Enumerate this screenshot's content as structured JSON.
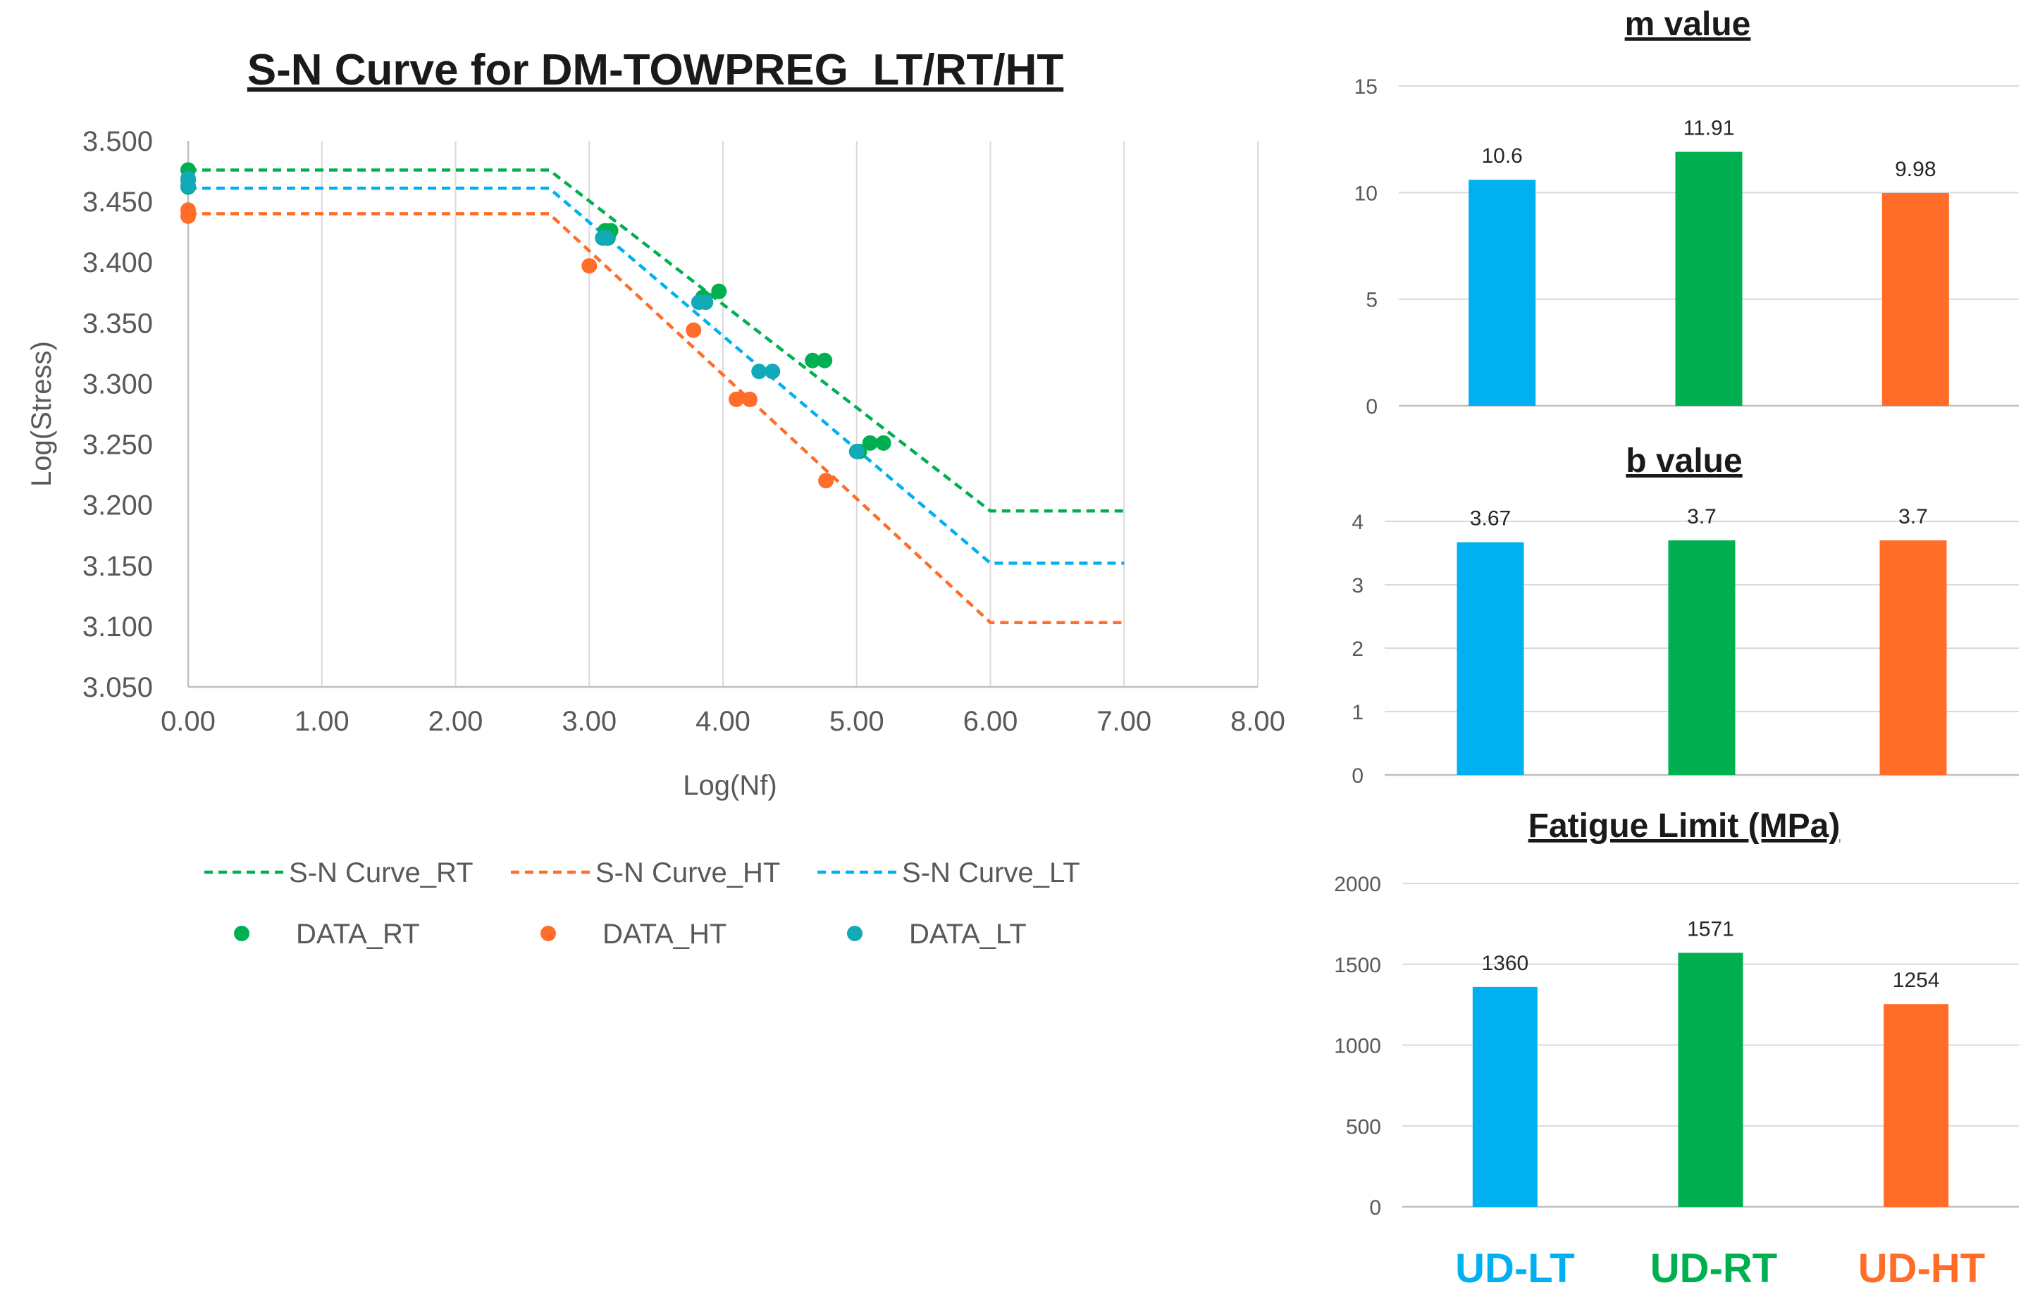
{
  "colors": {
    "rt": "#00b050",
    "ht": "#ff6d29",
    "lt": "#00b0f0",
    "lt_marker": "#12a9b8",
    "axis": "#bfbfbf",
    "grid": "#d9d9d9",
    "text": "#595959",
    "title": "#1a1a1a"
  },
  "chart_data": [
    {
      "type": "scatter",
      "title": "S-N Curve for DM-TOWPREG_LT/RT/HT",
      "xlabel": "Log(Nf)",
      "ylabel": "Log(Stress)",
      "xlim": [
        0,
        8
      ],
      "ylim": [
        3.05,
        3.5
      ],
      "xticks": [
        "0.00",
        "1.00",
        "2.00",
        "3.00",
        "4.00",
        "5.00",
        "6.00",
        "7.00",
        "8.00"
      ],
      "yticks": [
        "3.050",
        "3.100",
        "3.150",
        "3.200",
        "3.250",
        "3.300",
        "3.350",
        "3.400",
        "3.450",
        "3.500"
      ],
      "grid": "vertical",
      "legend_position": "bottom",
      "series": [
        {
          "name": "S-N Curve_RT",
          "kind": "line",
          "dash": true,
          "color_key": "rt",
          "x": [
            0,
            2.7,
            6.0,
            7.0
          ],
          "y": [
            3.476,
            3.476,
            3.195,
            3.195
          ]
        },
        {
          "name": "S-N Curve_HT",
          "kind": "line",
          "dash": true,
          "color_key": "ht",
          "x": [
            0,
            2.7,
            6.0,
            7.0
          ],
          "y": [
            3.44,
            3.44,
            3.103,
            3.103
          ]
        },
        {
          "name": "S-N Curve_LT",
          "kind": "line",
          "dash": true,
          "color_key": "lt",
          "x": [
            0,
            2.7,
            6.0,
            7.0
          ],
          "y": [
            3.461,
            3.461,
            3.152,
            3.152
          ]
        },
        {
          "name": "DATA_RT",
          "kind": "points",
          "color_key": "rt",
          "points": [
            [
              0.0,
              3.476
            ],
            [
              0.0,
              3.468
            ],
            [
              0.0,
              3.462
            ],
            [
              3.12,
              3.426
            ],
            [
              3.16,
              3.426
            ],
            [
              3.14,
              3.42
            ],
            [
              3.85,
              3.371
            ],
            [
              3.97,
              3.376
            ],
            [
              4.67,
              3.319
            ],
            [
              4.76,
              3.319
            ],
            [
              5.02,
              3.244
            ],
            [
              5.1,
              3.251
            ],
            [
              5.2,
              3.251
            ]
          ]
        },
        {
          "name": "DATA_HT",
          "kind": "points",
          "color_key": "ht",
          "points": [
            [
              0.0,
              3.443
            ],
            [
              0.0,
              3.438
            ],
            [
              3.0,
              3.397
            ],
            [
              3.78,
              3.344
            ],
            [
              4.1,
              3.287
            ],
            [
              4.2,
              3.287
            ],
            [
              4.77,
              3.22
            ]
          ]
        },
        {
          "name": "DATA_LT",
          "kind": "points",
          "color_key": "lt_marker",
          "points": [
            [
              0.0,
              3.469
            ],
            [
              0.0,
              3.463
            ],
            [
              3.1,
              3.42
            ],
            [
              3.13,
              3.42
            ],
            [
              3.82,
              3.367
            ],
            [
              3.87,
              3.367
            ],
            [
              4.27,
              3.31
            ],
            [
              4.37,
              3.31
            ],
            [
              5.0,
              3.244
            ]
          ]
        }
      ]
    },
    {
      "type": "bar",
      "title": "m value",
      "categories": [
        "UD-LT",
        "UD-RT",
        "UD-HT"
      ],
      "values": [
        10.6,
        11.91,
        9.98
      ],
      "labels": [
        "10.6",
        "11.91",
        "9.98"
      ],
      "ylim": [
        0,
        15
      ],
      "yticks": [
        "0",
        "5",
        "10",
        "15"
      ],
      "color_keys": [
        "lt",
        "rt",
        "ht"
      ]
    },
    {
      "type": "bar",
      "title": "b value",
      "categories": [
        "UD-LT",
        "UD-RT",
        "UD-HT"
      ],
      "values": [
        3.67,
        3.7,
        3.7
      ],
      "labels": [
        "3.67",
        "3.7",
        "3.7"
      ],
      "ylim": [
        0,
        4
      ],
      "yticks": [
        "0",
        "1",
        "2",
        "3",
        "4"
      ],
      "color_keys": [
        "lt",
        "rt",
        "ht"
      ]
    },
    {
      "type": "bar",
      "title": "Fatigue Limit (MPa)",
      "categories": [
        "UD-LT",
        "UD-RT",
        "UD-HT"
      ],
      "values": [
        1360,
        1571,
        1254
      ],
      "labels": [
        "1360",
        "1571",
        "1254"
      ],
      "ylim": [
        0,
        2000
      ],
      "yticks": [
        "0",
        "500",
        "1000",
        "1500",
        "2000"
      ],
      "color_keys": [
        "lt",
        "rt",
        "ht"
      ]
    }
  ],
  "categories_footer": [
    {
      "label": "UD-LT",
      "color_key": "lt"
    },
    {
      "label": "UD-RT",
      "color_key": "rt"
    },
    {
      "label": "UD-HT",
      "color_key": "ht"
    }
  ]
}
